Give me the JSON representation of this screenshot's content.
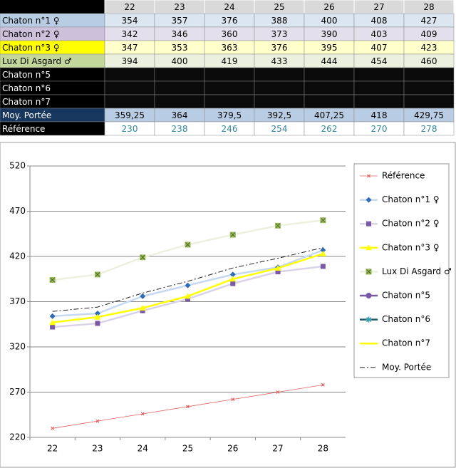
{
  "table": {
    "header": [
      "22",
      "23",
      "24",
      "25",
      "26",
      "27",
      "28"
    ],
    "rows": [
      {
        "label": "Chaton n°1 ♀",
        "cells": [
          "354",
          "357",
          "376",
          "388",
          "400",
          "408",
          "427"
        ]
      },
      {
        "label": "Chaton n°2 ♀",
        "cells": [
          "342",
          "346",
          "360",
          "373",
          "390",
          "403",
          "409"
        ]
      },
      {
        "label": "Chaton n°3 ♀",
        "cells": [
          "347",
          "353",
          "363",
          "376",
          "395",
          "407",
          "423"
        ]
      },
      {
        "label": "Lux Di Asgard ♂",
        "cells": [
          "394",
          "400",
          "419",
          "433",
          "444",
          "454",
          "460"
        ]
      },
      {
        "label": "Chaton n°5",
        "cells": []
      },
      {
        "label": "Chaton n°6",
        "cells": []
      },
      {
        "label": "Chaton n°7",
        "cells": []
      },
      {
        "label": "Moy. Portée",
        "cells": [
          "359,25",
          "364",
          "379,5",
          "392,5",
          "407,25",
          "418",
          "429,75"
        ]
      },
      {
        "label": "Référence",
        "cells": [
          "230",
          "238",
          "246",
          "254",
          "262",
          "270",
          "278"
        ]
      }
    ]
  },
  "chart_data": {
    "type": "line",
    "categories": [
      "22",
      "23",
      "24",
      "25",
      "26",
      "27",
      "28"
    ],
    "ylim": [
      220,
      520
    ],
    "yticks": [
      220,
      270,
      320,
      370,
      420,
      470,
      520
    ],
    "grid": true,
    "legend": "right",
    "series": [
      {
        "name": "Référence",
        "color": "#e06060",
        "marker": "x",
        "values": [
          230,
          238,
          246,
          254,
          262,
          270,
          278
        ]
      },
      {
        "name": "Chaton n°1 ♀",
        "color": "#c6d9f0",
        "marker_color": "#2e6bb8",
        "marker": "diamond",
        "values": [
          354,
          357,
          376,
          388,
          400,
          408,
          427
        ]
      },
      {
        "name": "Chaton n°2 ♀",
        "color": "#d9d2e9",
        "marker_color": "#7a5aa6",
        "marker": "square",
        "values": [
          342,
          346,
          360,
          373,
          390,
          403,
          409
        ]
      },
      {
        "name": "Chaton n°3 ♀",
        "color": "#ffff00",
        "marker_color": "#ffff00",
        "marker": "triangle",
        "values": [
          347,
          353,
          363,
          376,
          395,
          407,
          423
        ]
      },
      {
        "name": "Lux Di Asgard ♂",
        "color": "#ebf1de",
        "marker_color": "#9bbb59",
        "marker": "xsquare",
        "values": [
          394,
          400,
          419,
          433,
          444,
          454,
          460
        ]
      },
      {
        "name": "Chaton n°5",
        "color": "#7a5aa6",
        "marker": "circle",
        "values": [
          null,
          null,
          null,
          null,
          null,
          null,
          null
        ]
      },
      {
        "name": "Chaton n°6",
        "color": "#1f5b6e",
        "marker": "asterisk",
        "values": [
          null,
          null,
          null,
          null,
          null,
          null,
          null
        ]
      },
      {
        "name": "Chaton n°7",
        "color": "#ffff00",
        "marker": "none",
        "values": [
          null,
          null,
          null,
          null,
          null,
          null,
          null
        ]
      },
      {
        "name": "Moy. Portée",
        "color": "#222222",
        "marker": "none",
        "style": "dashdot",
        "values": [
          359.25,
          364,
          379.5,
          392.5,
          407.25,
          418,
          429.75
        ]
      }
    ]
  }
}
